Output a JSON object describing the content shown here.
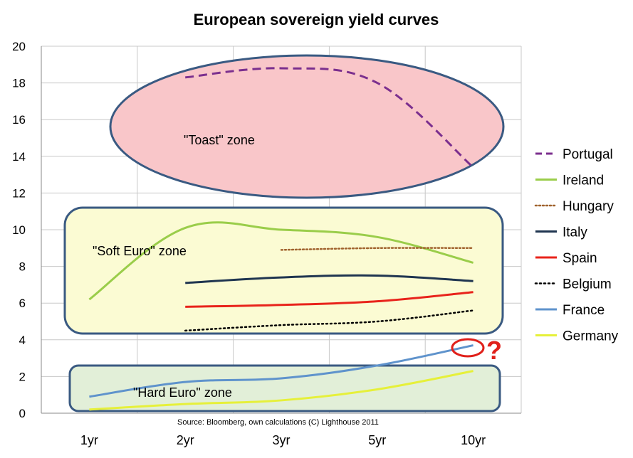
{
  "chart_data": {
    "type": "line",
    "title": "European sovereign yield curves",
    "categories": [
      "1yr",
      "2yr",
      "3yr",
      "5yr",
      "10yr"
    ],
    "ylim": [
      0,
      20
    ],
    "yticks": [
      0,
      2,
      4,
      6,
      8,
      10,
      12,
      14,
      16,
      18,
      20
    ],
    "grid": true,
    "legend_position": "right",
    "series": [
      {
        "name": "Portugal",
        "color": "#7b2f8e",
        "dash": "dash",
        "values": [
          null,
          18.3,
          18.8,
          18.0,
          13.4
        ]
      },
      {
        "name": "Ireland",
        "color": "#9acd4a",
        "dash": "solid",
        "values": [
          6.2,
          10.1,
          10.0,
          9.6,
          8.2
        ]
      },
      {
        "name": "Hungary",
        "color": "#a0622d",
        "dash": "dot",
        "values": [
          null,
          null,
          8.9,
          9.0,
          9.0
        ]
      },
      {
        "name": "Italy",
        "color": "#1f3550",
        "dash": "solid",
        "values": [
          null,
          7.1,
          7.4,
          7.5,
          7.2
        ]
      },
      {
        "name": "Spain",
        "color": "#e8231b",
        "dash": "solid",
        "values": [
          null,
          5.8,
          5.9,
          6.1,
          6.6
        ]
      },
      {
        "name": "Belgium",
        "color": "#000000",
        "dash": "dot",
        "values": [
          null,
          4.5,
          4.8,
          5.0,
          5.6
        ]
      },
      {
        "name": "France",
        "color": "#5f93cc",
        "dash": "solid",
        "values": [
          0.9,
          1.7,
          1.9,
          2.6,
          3.7
        ]
      },
      {
        "name": "Germany",
        "color": "#e6f03a",
        "dash": "solid",
        "values": [
          0.2,
          0.5,
          0.7,
          1.3,
          2.3
        ]
      }
    ],
    "annotations": {
      "toast_zone": "\"Toast\" zone",
      "soft_zone": "\"Soft Euro\" zone",
      "hard_zone": "\"Hard Euro\" zone",
      "question_mark": "?",
      "source": "Source: Bloomberg,  own calculations (C) Lighthouse  2011"
    }
  }
}
